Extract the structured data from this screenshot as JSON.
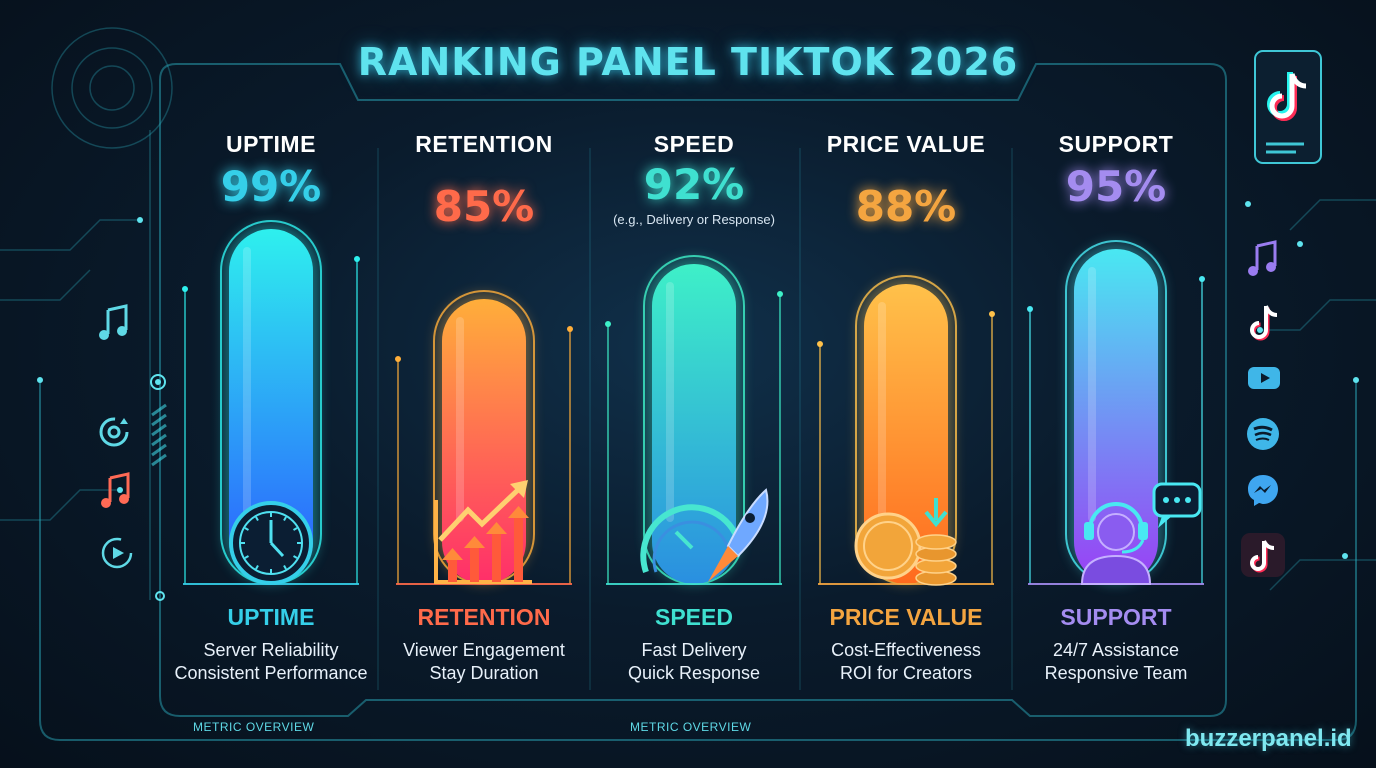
{
  "title": "RANKING PANEL TIKTOK 2026",
  "metrics": [
    {
      "title": "UPTIME",
      "percent": "99%",
      "value": 99,
      "note": "",
      "name": "UPTIME",
      "desc1": "Server Reliability",
      "desc2": "Consistent Performance",
      "icon": "clock-icon",
      "color": "#35cfe9",
      "grad_top": "#2ef0ee",
      "grad_bottom": "#2b5bff"
    },
    {
      "title": "RETENTION",
      "percent": "85%",
      "value": 85,
      "note": "",
      "name": "RETENTION",
      "desc1": "Viewer Engagement",
      "desc2": "Stay Duration",
      "icon": "growth-chart-icon",
      "color": "#ff6a4a",
      "grad_top": "#ffae3a",
      "grad_bottom": "#ff2e6a"
    },
    {
      "title": "SPEED",
      "percent": "92%",
      "value": 92,
      "note": "(e.g., Delivery or Response)",
      "name": "SPEED",
      "desc1": "Fast Delivery",
      "desc2": "Quick Response",
      "icon": "rocket-speedometer-icon",
      "color": "#3fe0d0",
      "grad_top": "#3ef0c8",
      "grad_bottom": "#2a8fe0"
    },
    {
      "title": "PRICE VALUE",
      "percent": "88%",
      "value": 88,
      "note": "",
      "name": "PRICE VALUE",
      "desc1": "Cost-Effectiveness",
      "desc2": "ROI for Creators",
      "icon": "coins-icon",
      "color": "#f4a540",
      "grad_top": "#ffc14a",
      "grad_bottom": "#ff6a1e"
    },
    {
      "title": "SUPPORT",
      "percent": "95%",
      "value": 95,
      "note": "",
      "name": "SUPPORT",
      "desc1": "24/7 Assistance",
      "desc2": "Responsive Team",
      "icon": "headset-agent-icon",
      "color": "#a48cf0",
      "grad_top": "#49e8f2",
      "grad_bottom": "#9a3ff5"
    }
  ],
  "footer": {
    "overview_left": "METRIC OVERVIEW",
    "overview_right": "METRIC OVERVIEW",
    "brand": "buzzerpanel.id"
  },
  "left_icons": [
    "music-note-icon",
    "refresh-target-icon",
    "music-note-icon",
    "play-circle-icon"
  ],
  "right_icons": [
    "tiktok-phone-icon",
    "music-note-icon",
    "tiktok-icon",
    "youtube-icon",
    "spotify-icon",
    "messenger-icon",
    "tiktok-icon"
  ]
}
